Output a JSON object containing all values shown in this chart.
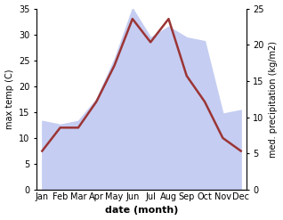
{
  "months": [
    "Jan",
    "Feb",
    "Mar",
    "Apr",
    "May",
    "Jun",
    "Jul",
    "Aug",
    "Sep",
    "Oct",
    "Nov",
    "Dec"
  ],
  "max_temp": [
    7.5,
    12.0,
    12.0,
    17.0,
    24.0,
    33.0,
    28.5,
    33.0,
    22.0,
    17.0,
    10.0,
    7.5
  ],
  "precipitation": [
    9.5,
    9.0,
    9.5,
    12.5,
    18.0,
    25.0,
    21.0,
    22.5,
    21.0,
    20.5,
    10.5,
    11.0
  ],
  "temp_color": "#9b3535",
  "precip_fill_color": "#c5cdf2",
  "ylabel_left": "max temp (C)",
  "ylabel_right": "med. precipitation (kg/m2)",
  "xlabel": "date (month)",
  "ylim_left": [
    0,
    35
  ],
  "ylim_right": [
    0,
    25
  ],
  "yticks_left": [
    0,
    5,
    10,
    15,
    20,
    25,
    30,
    35
  ],
  "yticks_right": [
    0,
    5,
    10,
    15,
    20,
    25
  ],
  "background_color": "#ffffff"
}
